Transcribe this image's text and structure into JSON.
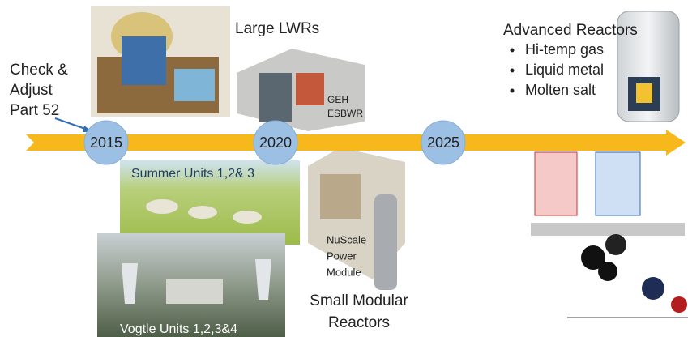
{
  "timeline": {
    "years": [
      "2015",
      "2020",
      "2025"
    ]
  },
  "check": {
    "lines": [
      "Check &",
      "Adjust",
      "Part 52"
    ]
  },
  "large_lwrs": {
    "title": "Large LWRs",
    "esbwr": [
      "GEH",
      "ESBWR"
    ]
  },
  "advanced": {
    "title": "Advanced Reactors",
    "bullets": [
      "Hi-temp gas",
      "Liquid metal",
      "Molten salt"
    ]
  },
  "summer": {
    "caption": "Summer Units 1,2& 3"
  },
  "vogtle": {
    "caption": "Vogtle Units 1,2,3&4"
  },
  "nuscale": {
    "lines": [
      "NuScale",
      "Power",
      "Module"
    ]
  },
  "smr": {
    "lines": [
      "Small Modular",
      "Reactors"
    ]
  }
}
